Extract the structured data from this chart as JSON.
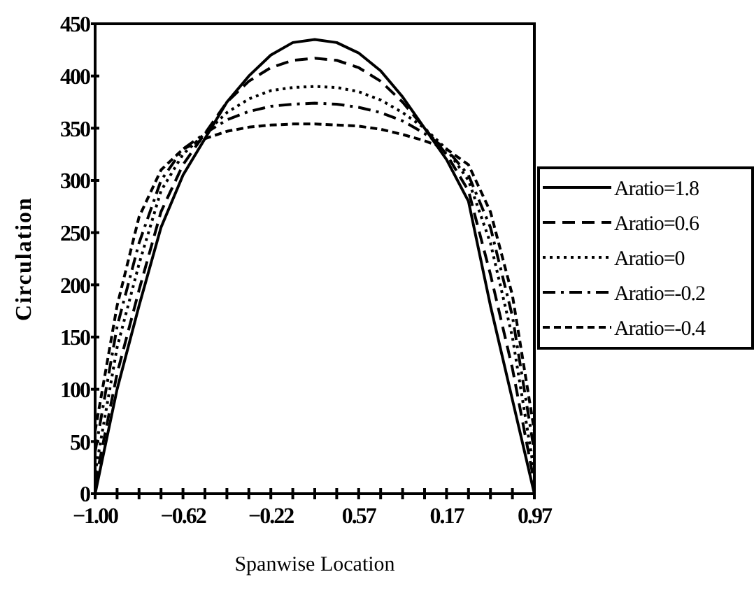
{
  "chart_data": {
    "type": "line",
    "xlabel": "Spanwise Location",
    "ylabel": "Circulation",
    "categories": [
      "−1.00",
      null,
      null,
      null,
      "−0.62",
      null,
      null,
      null,
      "−0.22",
      null,
      null,
      null,
      "0.57",
      null,
      null,
      null,
      "0.17",
      null,
      null,
      null,
      "0.97"
    ],
    "ylim": [
      0,
      450
    ],
    "yticks": [
      0,
      50,
      100,
      150,
      200,
      250,
      300,
      350,
      400,
      450
    ],
    "grid": false,
    "legend": "right",
    "marker": "none",
    "series": [
      {
        "name": "Aratio=1.8",
        "color": "#000000",
        "line_style": "solid",
        "values": [
          0,
          100,
          180,
          255,
          305,
          340,
          375,
          400,
          420,
          432,
          435,
          432,
          422,
          405,
          380,
          350,
          320,
          280,
          180,
          90,
          0
        ]
      },
      {
        "name": "Aratio=0.6",
        "color": "#000000",
        "line_style": "dashed",
        "values": [
          10,
          115,
          195,
          270,
          315,
          345,
          375,
          395,
          408,
          415,
          417,
          415,
          408,
          395,
          375,
          350,
          325,
          290,
          210,
          120,
          10
        ]
      },
      {
        "name": "Aratio=0",
        "color": "#000000",
        "line_style": "dotted",
        "values": [
          20,
          140,
          220,
          290,
          325,
          345,
          365,
          378,
          386,
          389,
          390,
          389,
          385,
          377,
          365,
          350,
          330,
          300,
          240,
          150,
          20
        ]
      },
      {
        "name": "Aratio=-0.2",
        "color": "#000000",
        "line_style": "dashdot",
        "values": [
          40,
          160,
          240,
          300,
          330,
          345,
          358,
          366,
          371,
          373,
          374,
          373,
          370,
          365,
          357,
          345,
          330,
          305,
          255,
          170,
          40
        ]
      },
      {
        "name": "Aratio=-0.4",
        "color": "#000000",
        "line_style": "shortdash",
        "values": [
          60,
          180,
          265,
          310,
          330,
          340,
          347,
          351,
          353,
          354,
          354,
          353,
          352,
          349,
          344,
          338,
          330,
          315,
          270,
          190,
          60
        ]
      }
    ]
  }
}
